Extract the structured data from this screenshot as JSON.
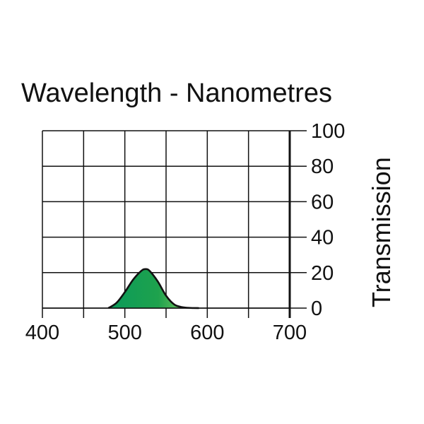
{
  "chart_data": {
    "type": "area",
    "title": "Wavelength - Nanometres",
    "xlabel": "",
    "ylabel": "Transmission",
    "xlim": [
      400,
      700
    ],
    "ylim": [
      0,
      100
    ],
    "x_ticks": [
      400,
      500,
      600,
      700
    ],
    "y_ticks": [
      0,
      20,
      40,
      60,
      80,
      100
    ],
    "x_tick_labels": [
      "400",
      "500",
      "600",
      "700"
    ],
    "y_tick_labels": [
      "0",
      "20",
      "40",
      "60",
      "80",
      "100"
    ],
    "grid": true,
    "legend": "none",
    "series": [
      {
        "x": [
          480,
          490,
          500,
          510,
          520,
          525,
          530,
          540,
          550,
          560,
          570,
          580,
          590
        ],
        "y": [
          0,
          3,
          9,
          16,
          21,
          22,
          21,
          15,
          7,
          2,
          0.5,
          0.1,
          0
        ],
        "color_left": "#0a9a5a",
        "color_right": "#9cd46a",
        "line_color": "#111111"
      }
    ]
  }
}
